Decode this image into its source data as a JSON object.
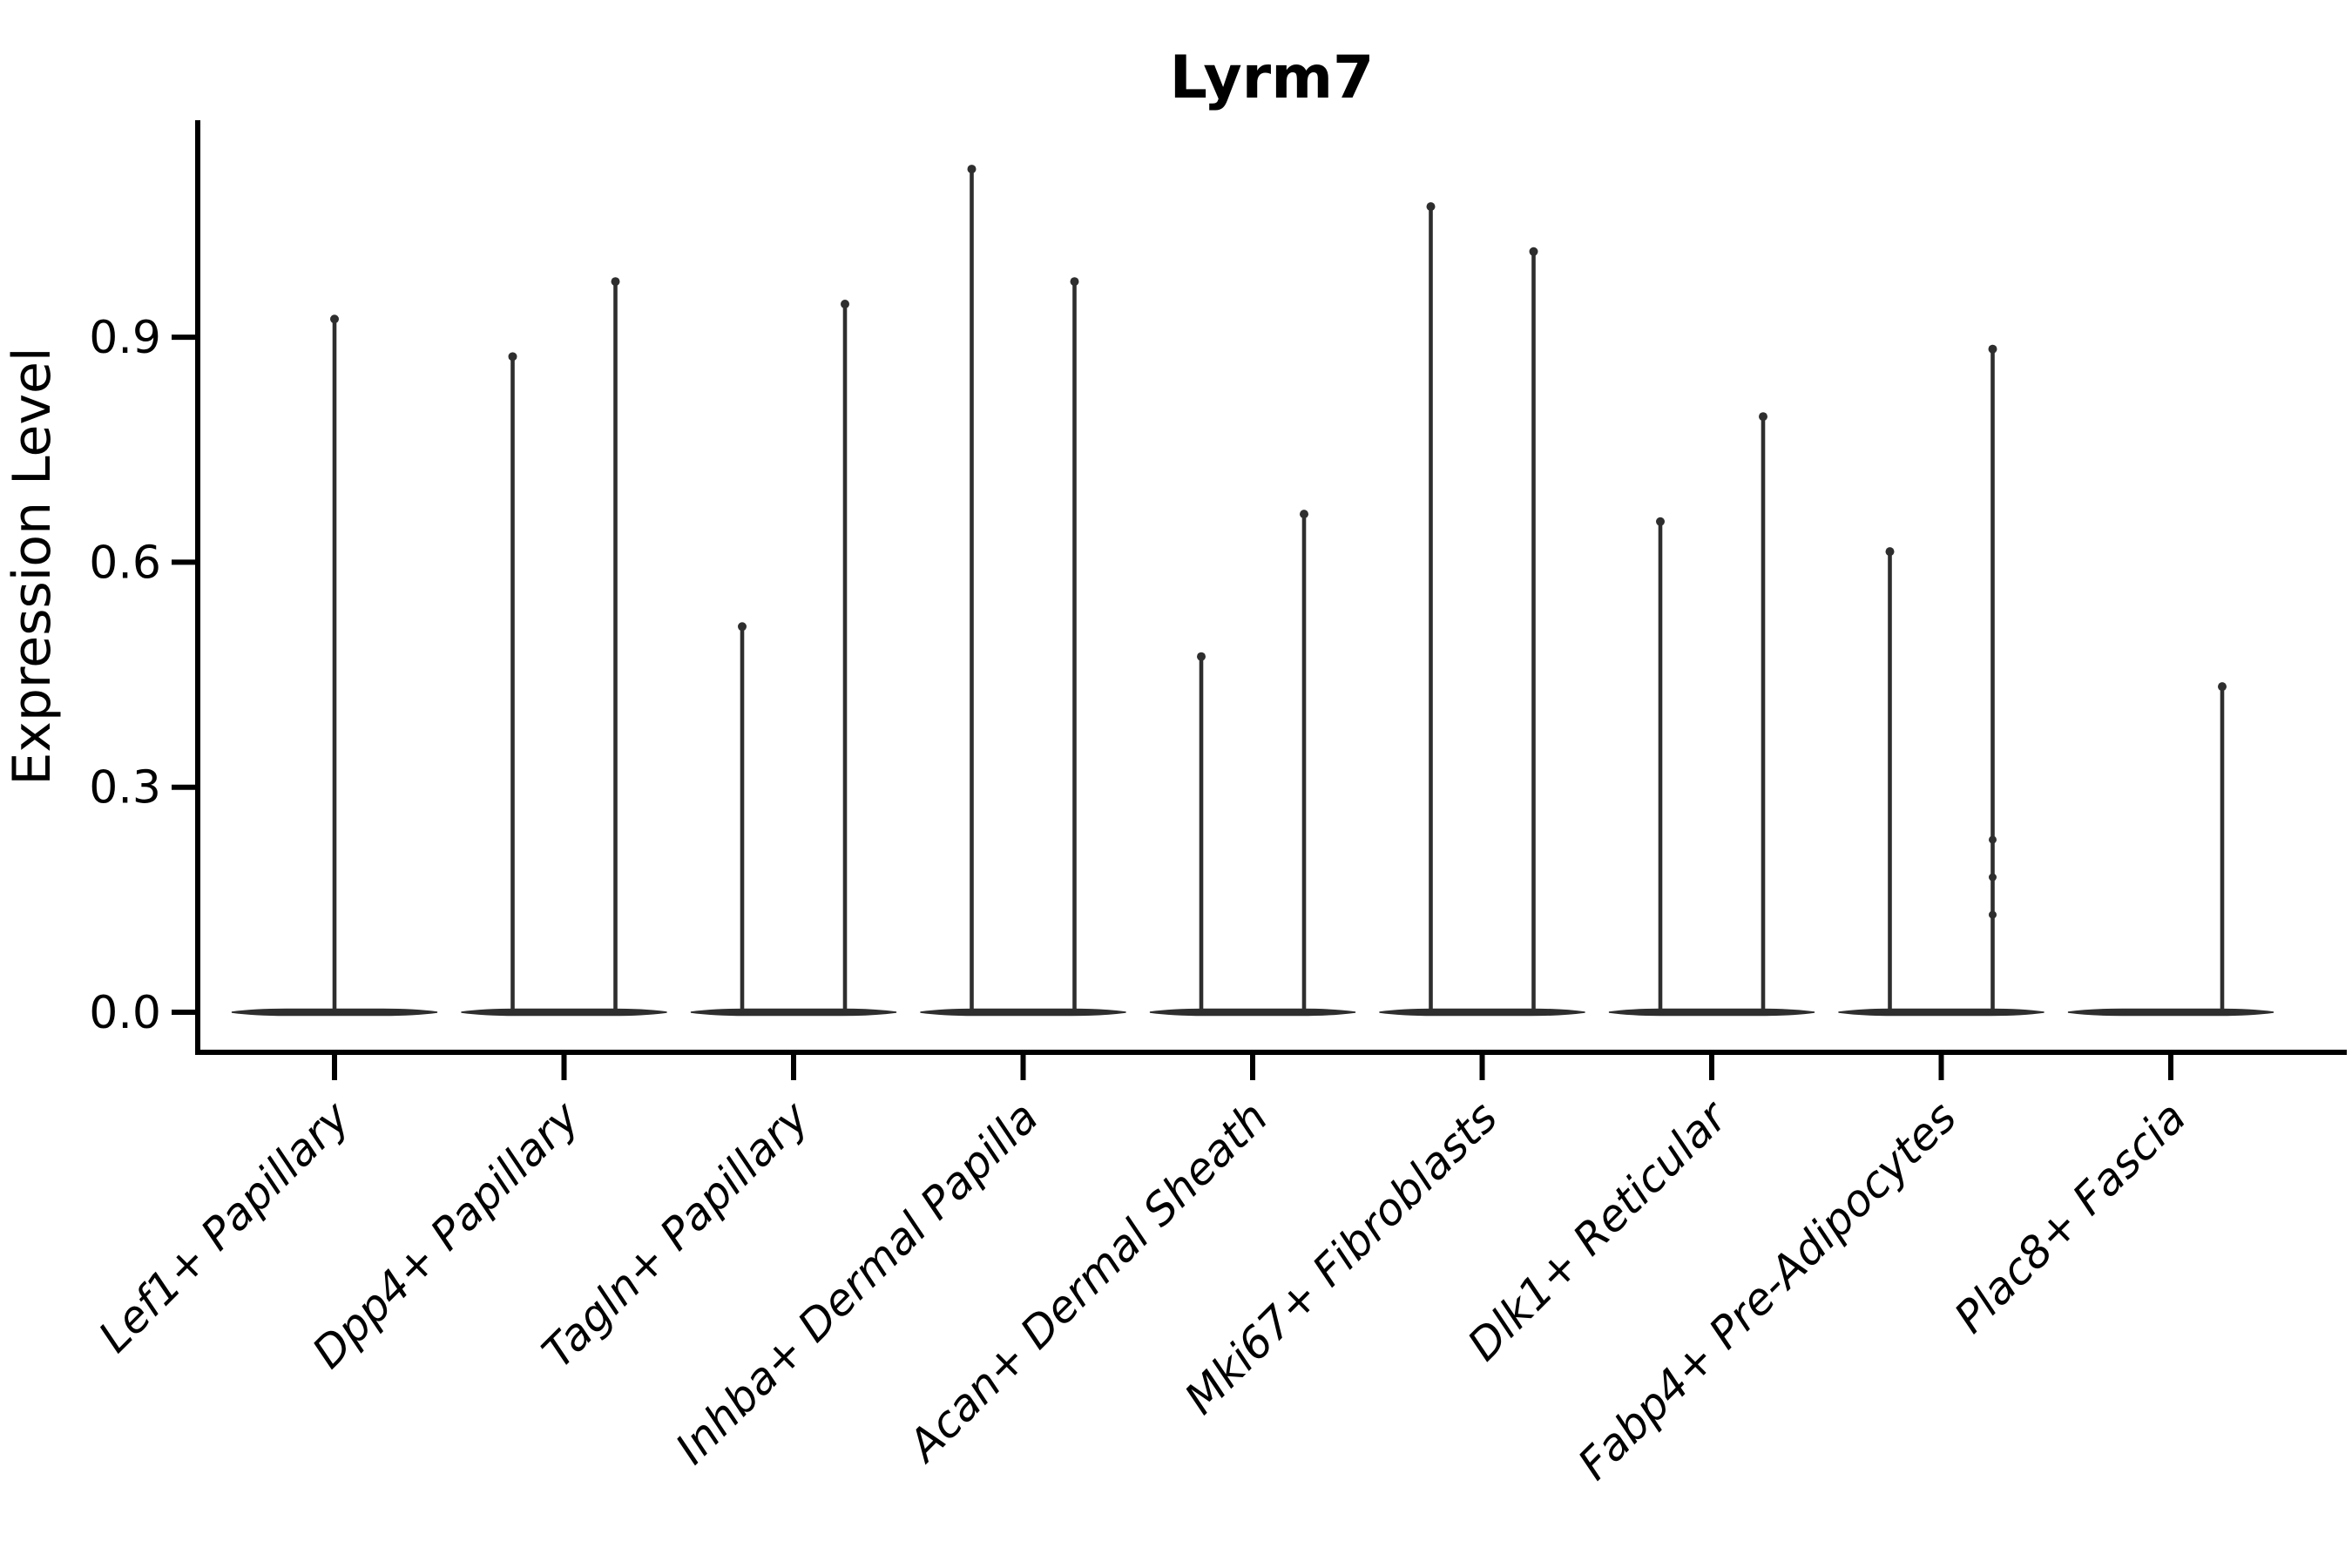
{
  "page": {
    "background": "#ffffff"
  },
  "chart_data": {
    "type": "violin",
    "title": "Lyrm7",
    "ylabel": "Expression Level",
    "xlabel": "",
    "ylim": [
      0,
      1.19
    ],
    "grid": false,
    "legend": "none",
    "x_label_rotation_deg": 45,
    "x_label_style": "italic",
    "ink_color": "#2e2e2e",
    "axis_color": "#000000",
    "text_color": "#000000",
    "yticks": [
      {
        "label": "0.0",
        "value": 0.0
      },
      {
        "label": "0.3",
        "value": 0.3
      },
      {
        "label": "0.6",
        "value": 0.6
      },
      {
        "label": "0.9",
        "value": 0.9
      }
    ],
    "categories": [
      "Lef1+ Papillary",
      "Dpp4+ Papillary",
      "Tagln+ Papillary",
      "Inhba+ Dermal Papilla",
      "Acan+ Dermal Sheath",
      "Mki67+ Fibroblasts",
      "Dlk1+ Reticular",
      "Fabp4+ Pre-Adipocytes",
      "Plac8+ Fascia"
    ],
    "violins": [
      {
        "category": "Lef1+ Papillary",
        "spikes": [
          {
            "pos": "center",
            "max": 0.93
          }
        ]
      },
      {
        "category": "Dpp4+ Papillary",
        "spikes": [
          {
            "pos": "left",
            "max": 0.88
          },
          {
            "pos": "right",
            "max": 0.98
          }
        ]
      },
      {
        "category": "Tagln+ Papillary",
        "spikes": [
          {
            "pos": "left",
            "max": 0.52
          },
          {
            "pos": "right",
            "max": 0.95
          }
        ]
      },
      {
        "category": "Inhba+ Dermal Papilla",
        "spikes": [
          {
            "pos": "left",
            "max": 1.13
          },
          {
            "pos": "right",
            "max": 0.98
          }
        ]
      },
      {
        "category": "Acan+ Dermal Sheath",
        "spikes": [
          {
            "pos": "left",
            "max": 0.48
          },
          {
            "pos": "right",
            "max": 0.67
          }
        ]
      },
      {
        "category": "Mki67+ Fibroblasts",
        "spikes": [
          {
            "pos": "left",
            "max": 1.08
          },
          {
            "pos": "right",
            "max": 1.02
          }
        ]
      },
      {
        "category": "Dlk1+ Reticular",
        "spikes": [
          {
            "pos": "left",
            "max": 0.66
          },
          {
            "pos": "right",
            "max": 0.8
          }
        ]
      },
      {
        "category": "Fabp4+ Pre-Adipocytes",
        "spikes": [
          {
            "pos": "left",
            "max": 0.62
          },
          {
            "pos": "right",
            "max": 0.89,
            "knots": [
              0.13,
              0.18,
              0.23
            ]
          }
        ]
      },
      {
        "category": "Plac8+ Fascia",
        "spikes": [
          {
            "pos": "right",
            "max": 0.44
          }
        ]
      }
    ]
  }
}
